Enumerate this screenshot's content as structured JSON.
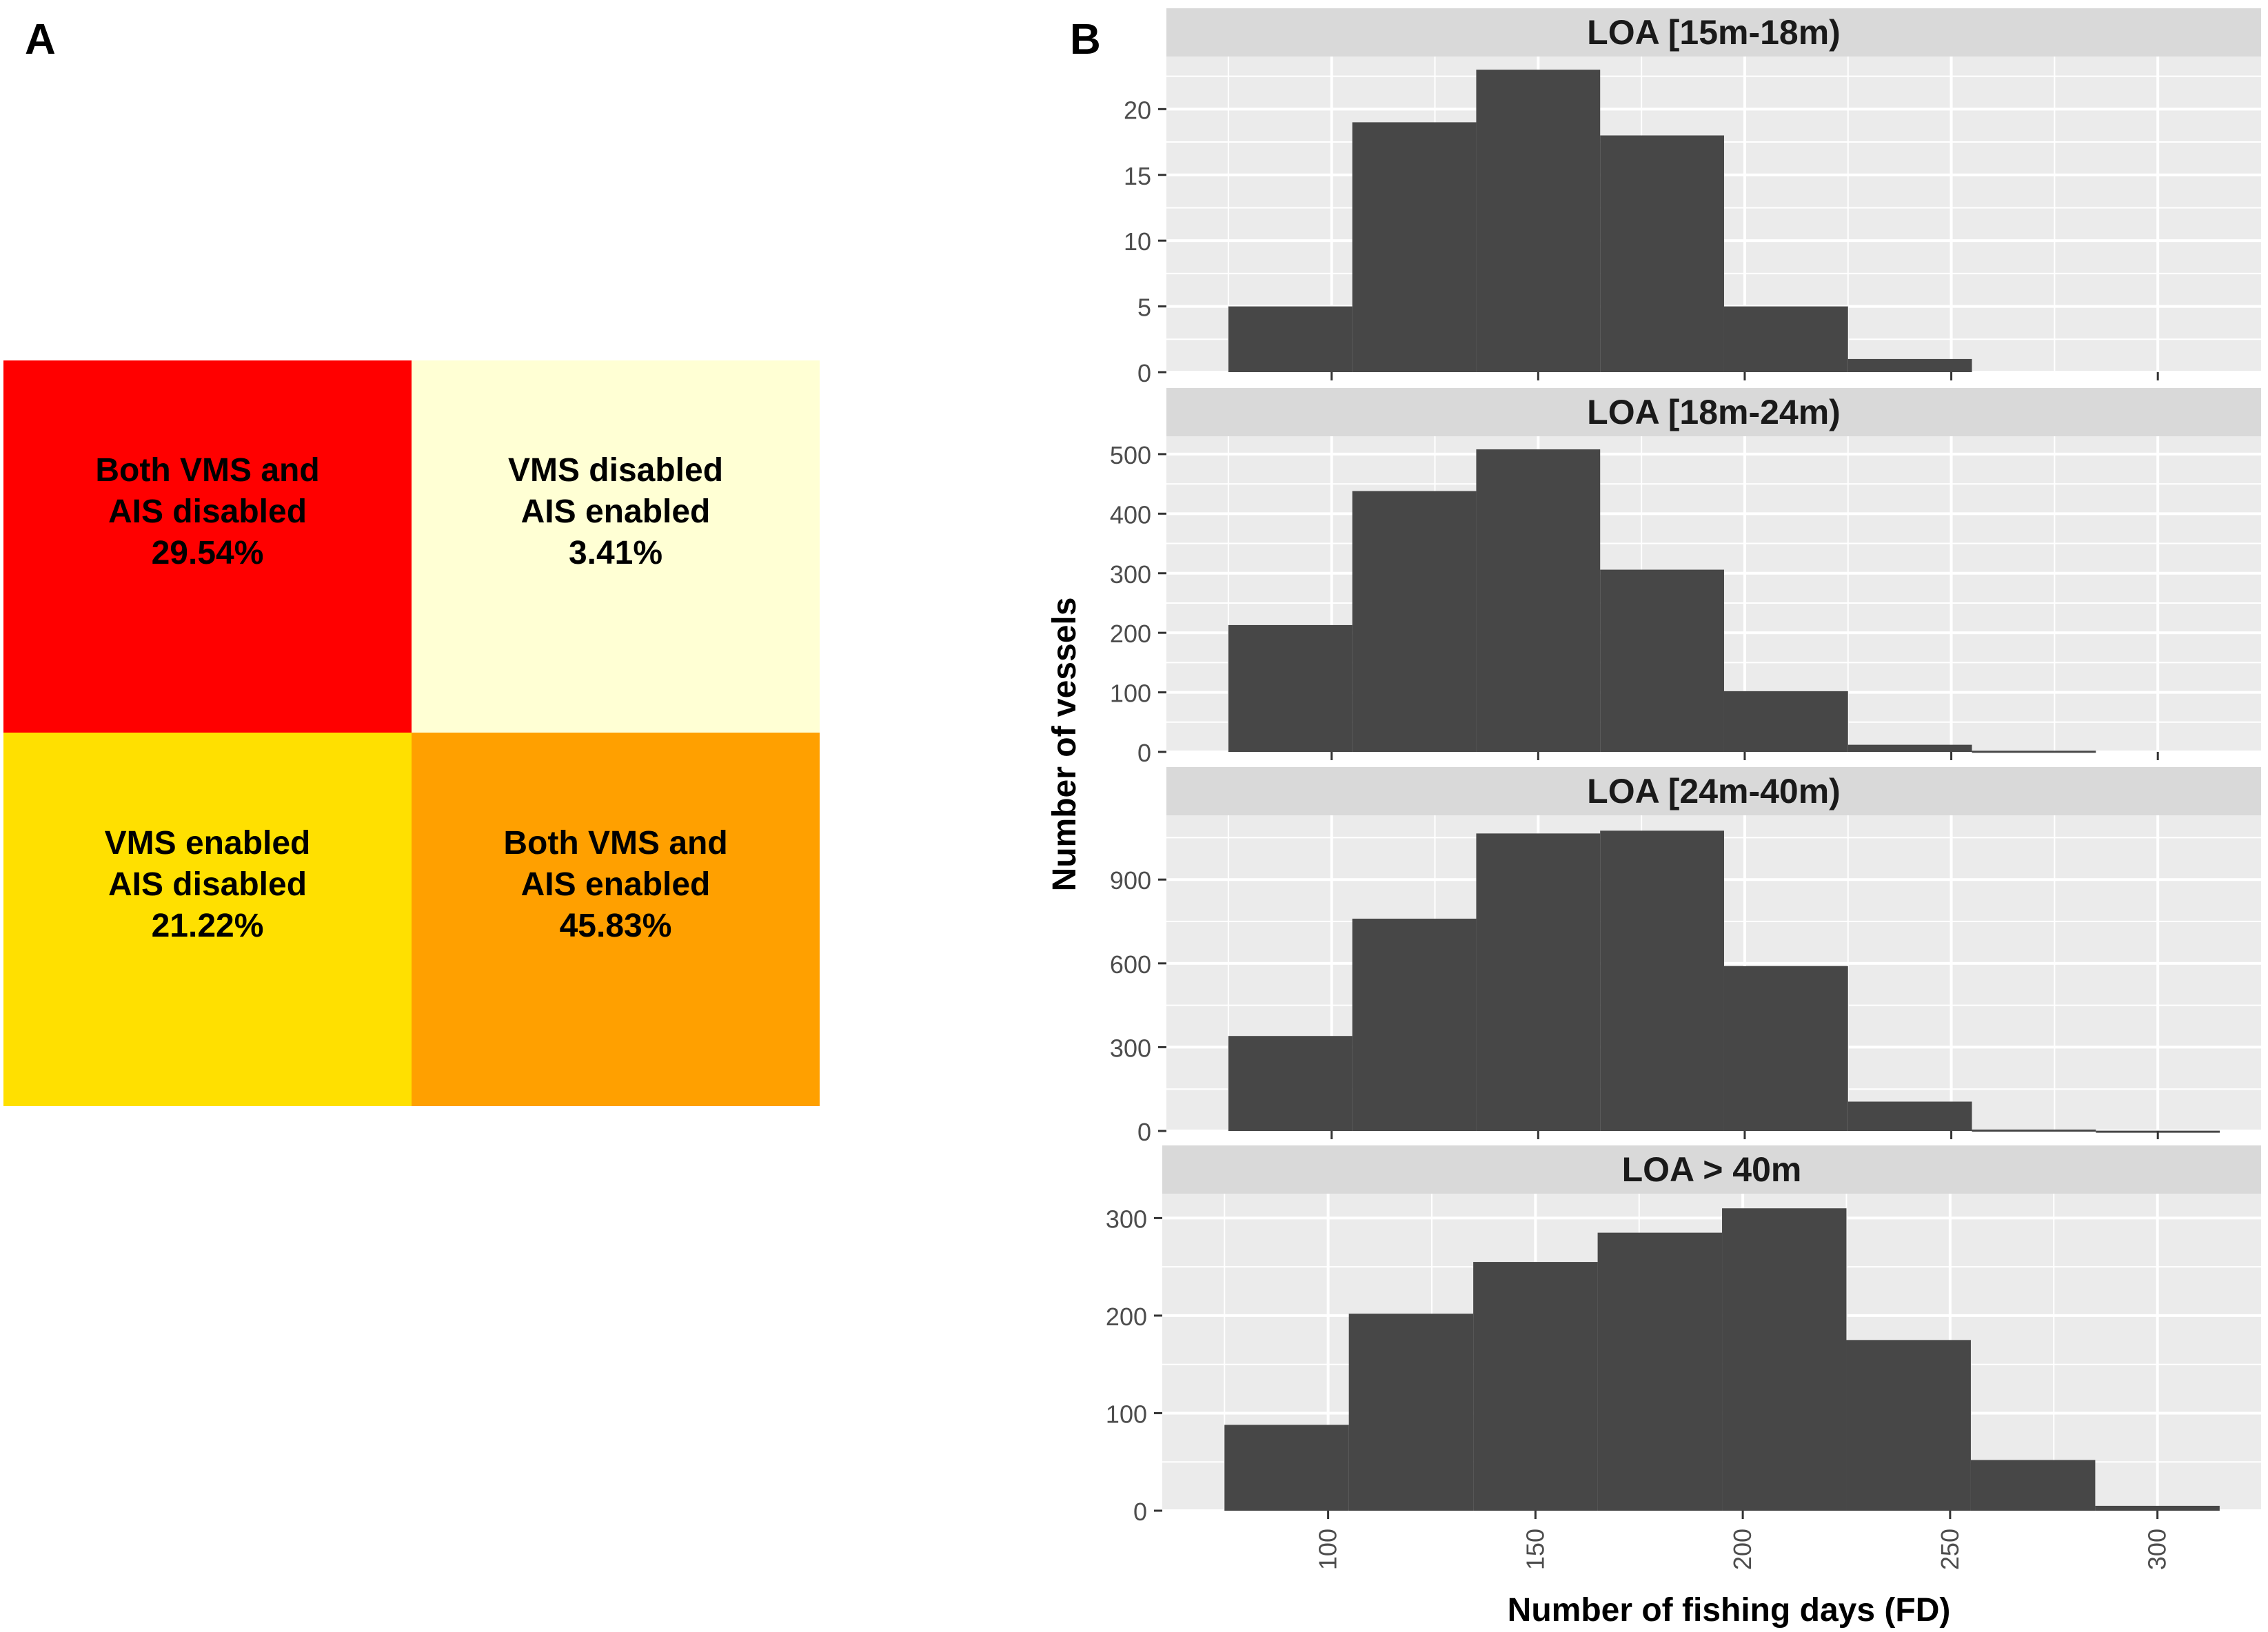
{
  "panel_a": {
    "label": "A",
    "cells": [
      {
        "line1": "Both VMS and",
        "line2": "AIS disabled",
        "percent": "29.54%",
        "color": "#FF0000"
      },
      {
        "line1": "VMS disabled",
        "line2": "AIS enabled",
        "percent": "3.41%",
        "color": "#FFFFD4"
      },
      {
        "line1": "VMS enabled",
        "line2": "AIS disabled",
        "percent": "21.22%",
        "color": "#FFE000"
      },
      {
        "line1": "Both VMS and",
        "line2": "AIS enabled",
        "percent": "45.83%",
        "color": "#FFA000"
      }
    ]
  },
  "panel_b": {
    "label": "B",
    "panel_bg": "#EBEBEB",
    "strip_bg": "#D9D9D9",
    "bar_color": "#474747"
  },
  "chart_data": {
    "type": "bar",
    "title": "",
    "xlabel": "Number of fishing days (FD)",
    "ylabel": "Number of vessels",
    "xlim": [
      60,
      325
    ],
    "x_ticks": [
      100,
      150,
      200,
      250,
      300
    ],
    "bin_width": 30,
    "facets": [
      {
        "title": "LOA [15m-18m)",
        "bin_starts": [
          75,
          105,
          135,
          165,
          195,
          225,
          255
        ],
        "values": [
          5,
          19,
          23,
          18,
          5,
          1,
          0
        ],
        "ylim": [
          0,
          24
        ],
        "y_ticks": [
          0,
          5,
          10,
          15,
          20
        ]
      },
      {
        "title": "LOA [18m-24m)",
        "bin_starts": [
          75,
          105,
          135,
          165,
          195,
          225,
          255
        ],
        "values": [
          213,
          438,
          508,
          306,
          102,
          12,
          2
        ],
        "ylim": [
          0,
          530
        ],
        "y_ticks": [
          0,
          100,
          200,
          300,
          400,
          500
        ]
      },
      {
        "title": "LOA [24m-40m)",
        "bin_starts": [
          75,
          105,
          135,
          165,
          195,
          225,
          255,
          285
        ],
        "values": [
          340,
          760,
          1065,
          1075,
          590,
          105,
          5,
          1
        ],
        "ylim": [
          0,
          1130
        ],
        "y_ticks": [
          0,
          300,
          600,
          900
        ]
      },
      {
        "title": "LOA > 40m",
        "bin_starts": [
          75,
          105,
          135,
          165,
          195,
          225,
          255,
          285
        ],
        "values": [
          88,
          202,
          255,
          285,
          310,
          175,
          52,
          5
        ],
        "ylim": [
          0,
          325
        ],
        "y_ticks": [
          0,
          100,
          200,
          300
        ]
      }
    ]
  }
}
